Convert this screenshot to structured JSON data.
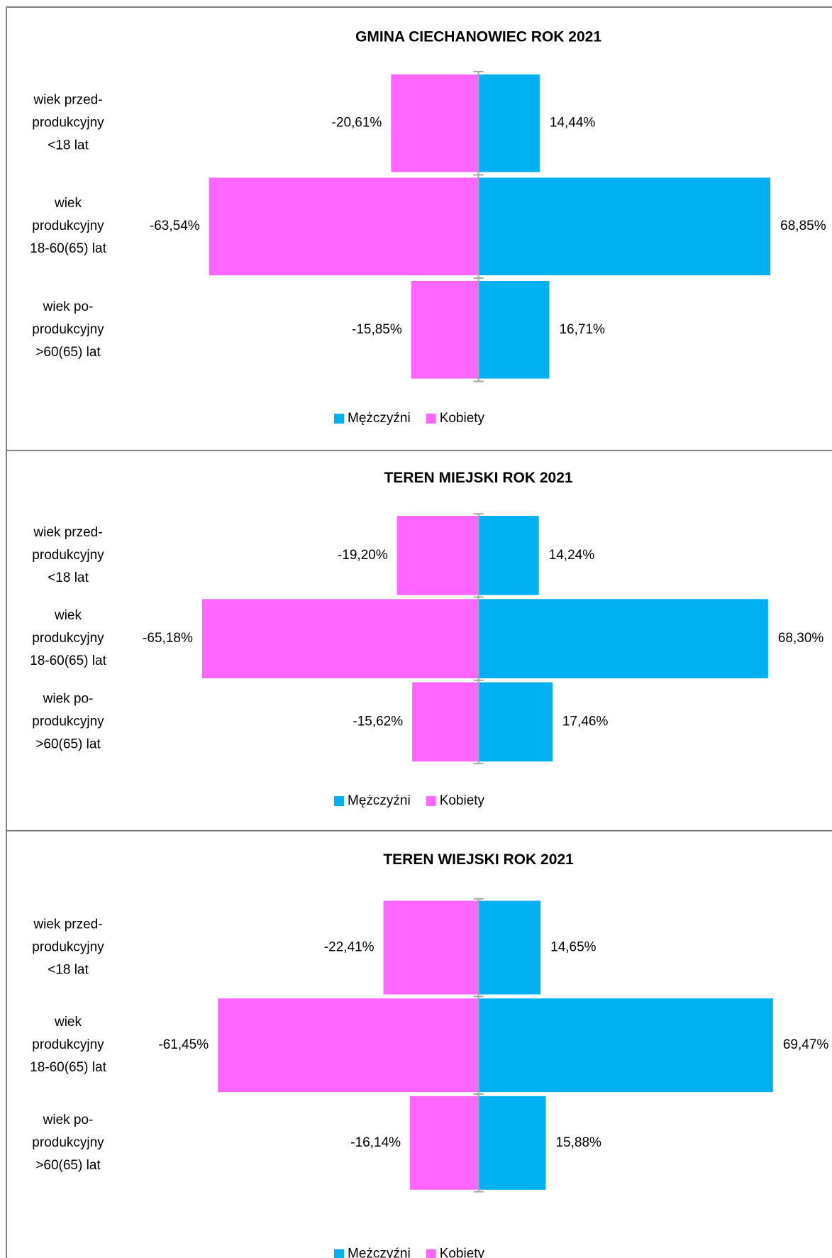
{
  "chart_data": [
    {
      "type": "butterfly",
      "title": "GMINA CIECHANOWIEC ROK 2021",
      "categories": [
        [
          "wiek przed-",
          "produkcyjny",
          "<18 lat"
        ],
        [
          "wiek",
          "produkcyjny",
          "18-60(65) lat"
        ],
        [
          "wiek po-",
          "produkcyjny",
          ">60(65) lat"
        ]
      ],
      "xlim": [
        -80,
        80
      ],
      "series": [
        {
          "name": "Mężczyźni",
          "color": "#00b0f0",
          "values": [
            14.44,
            68.85,
            16.71
          ],
          "value_labels": [
            "14,44%",
            "68,85%",
            "16,71%"
          ]
        },
        {
          "name": "Kobiety",
          "color": "#ff66ff",
          "values": [
            -20.61,
            -63.54,
            -15.85
          ],
          "value_labels": [
            "-20,61%",
            "-63,54%",
            "-15,85%"
          ]
        }
      ]
    },
    {
      "type": "butterfly",
      "title": "TEREN MIEJSKI ROK 2021",
      "categories": [
        [
          "wiek przed-",
          "produkcyjny",
          "<18 lat"
        ],
        [
          "wiek",
          "produkcyjny",
          "18-60(65) lat"
        ],
        [
          "wiek po-",
          "produkcyjny",
          ">60(65) lat"
        ]
      ],
      "xlim": [
        -80,
        80
      ],
      "series": [
        {
          "name": "Mężczyźni",
          "color": "#00b0f0",
          "values": [
            14.24,
            68.3,
            17.46
          ],
          "value_labels": [
            "14,24%",
            "68,30%",
            "17,46%"
          ]
        },
        {
          "name": "Kobiety",
          "color": "#ff66ff",
          "values": [
            -19.2,
            -65.18,
            -15.62
          ],
          "value_labels": [
            "-19,20%",
            "-65,18%",
            "-15,62%"
          ]
        }
      ]
    },
    {
      "type": "butterfly",
      "title": "TEREN WIEJSKI ROK 2021",
      "categories": [
        [
          "wiek przed-",
          "produkcyjny",
          "<18 lat"
        ],
        [
          "wiek",
          "produkcyjny",
          "18-60(65) lat"
        ],
        [
          "wiek po-",
          "produkcyjny",
          ">60(65) lat"
        ]
      ],
      "xlim": [
        -80,
        80
      ],
      "series": [
        {
          "name": "Mężczyźni",
          "color": "#00b0f0",
          "values": [
            14.65,
            69.47,
            15.88
          ],
          "value_labels": [
            "14,65%",
            "69,47%",
            "15,88%"
          ]
        },
        {
          "name": "Kobiety",
          "color": "#ff66ff",
          "values": [
            -22.41,
            -61.45,
            -16.14
          ],
          "value_labels": [
            "-22,41%",
            "-61,45%",
            "-16,14%"
          ]
        }
      ]
    }
  ]
}
